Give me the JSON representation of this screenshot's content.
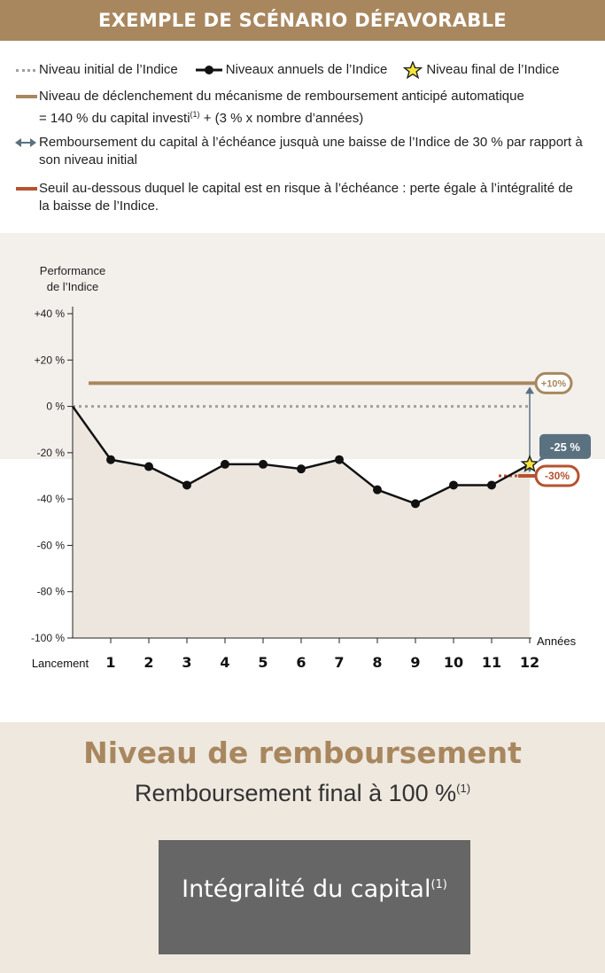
{
  "banner_title": "EXEMPLE DE SCÉNARIO DÉFAVORABLE",
  "legend": {
    "initial": "Niveau initial de l’Indice",
    "annual": "Niveaux annuels de l’Indice",
    "final": "Niveau final de l’Indice",
    "trigger_line1": "Niveau de déclenchement du mécanisme de remboursement anticipé automatique",
    "trigger_line2_a": "= 140 % du capital investi",
    "trigger_line2_sup": "(1)",
    "trigger_line2_b": " + (3 % x nombre d’années)",
    "protection_line1": "Remboursement du capital à l’échéance jusquà une baisse de l’Indice de 30 % par rapport à",
    "protection_line2": "son niveau initial",
    "risk_line1": "Seuil au-dessous duquel le capital est en risque à l’échéance : perte égale à l’intégralité de",
    "risk_line2": "la baisse de l’Indice."
  },
  "colors": {
    "tan": "#a8875f",
    "red": "#b5532f",
    "slate": "#5a7180",
    "fill": "#ede6df",
    "star": "#f4e53b"
  },
  "chart_data": {
    "type": "line",
    "ylabel": "Performance\nde l’Indice",
    "xlabel": "Années",
    "ylim": [
      -100,
      40
    ],
    "y_ticks": [
      40,
      20,
      0,
      -20,
      -40,
      -60,
      -80,
      -100
    ],
    "y_tick_labels": [
      "+40 %",
      "+20 %",
      "0 %",
      "-20 %",
      "-40 %",
      "-60 %",
      "-80 %",
      "-100 %"
    ],
    "categories": [
      "Lancement",
      "1",
      "2",
      "3",
      "4",
      "5",
      "6",
      "7",
      "8",
      "9",
      "10",
      "11",
      "12"
    ],
    "series": [
      {
        "name": "Niveaux annuels de l’Indice",
        "values": [
          0,
          -23,
          -26,
          -34,
          -25,
          -25,
          -27,
          -23,
          -36,
          -42,
          -34,
          -34,
          -25
        ]
      }
    ],
    "initial_level": 0,
    "trigger_level": 10,
    "risk_threshold": -30,
    "final_value": -25,
    "annotations": {
      "trigger": "+10%",
      "final": "-25 %",
      "risk": "-30%"
    }
  },
  "payout": {
    "title": "Niveau de remboursement",
    "subtitle": "Remboursement final à 100 %",
    "subtitle_sup": "(1)",
    "box_text": "Intégralité du capital",
    "box_sup": "(1)"
  }
}
